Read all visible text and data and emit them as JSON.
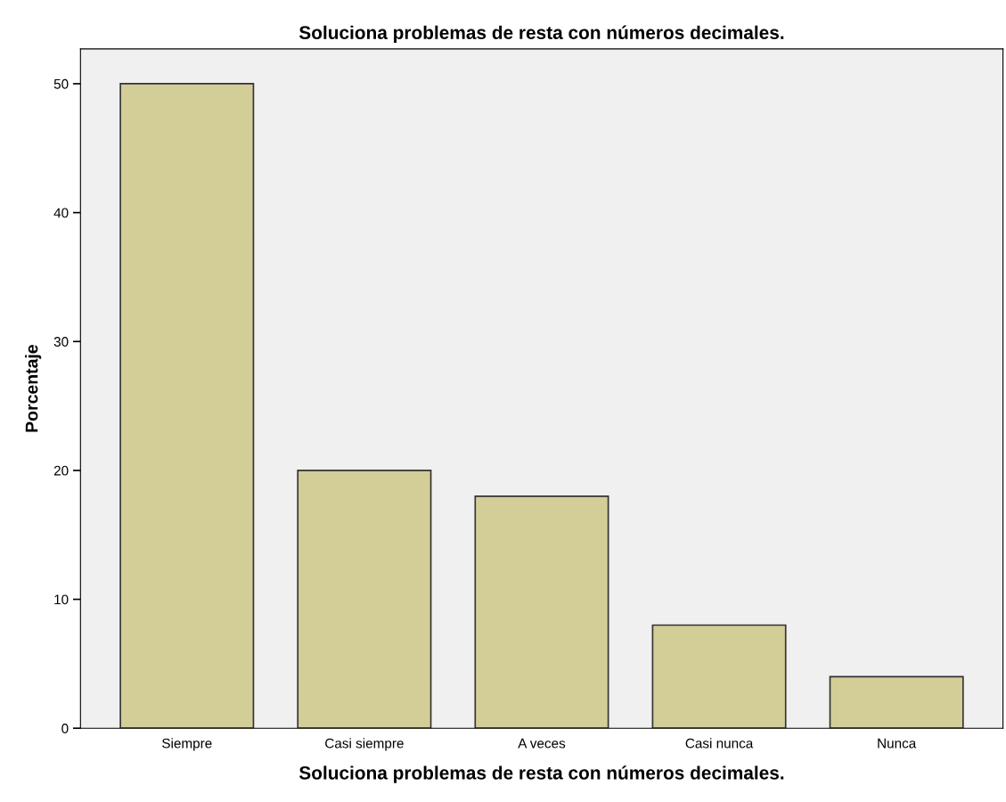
{
  "chart_data": {
    "type": "bar",
    "title": "Soluciona problemas de resta con números decimales.",
    "xlabel": "Soluciona problemas de resta con números decimales.",
    "ylabel": "Porcentaje",
    "categories": [
      "Siempre",
      "Casi siempre",
      "A veces",
      "Casi nunca",
      "Nunca"
    ],
    "values": [
      50,
      20,
      18,
      8,
      4
    ],
    "color": "#d3ce97",
    "ylim": [
      0,
      52.7
    ],
    "yticks": [
      0,
      10,
      20,
      30,
      40,
      50
    ],
    "grid": false
  }
}
